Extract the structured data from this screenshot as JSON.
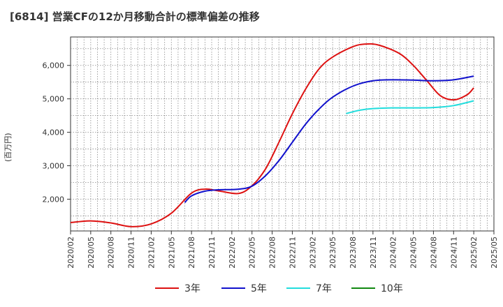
{
  "chart_data": {
    "type": "line",
    "title": "[6814]  営業CFの12か月移動合計の標準偏差の推移",
    "ylabel": "(百万円)",
    "xlabel": "",
    "x_ticks": [
      "2020/02",
      "2020/05",
      "2020/08",
      "2020/11",
      "2021/02",
      "2021/05",
      "2021/08",
      "2021/11",
      "2022/02",
      "2022/05",
      "2022/08",
      "2022/11",
      "2023/02",
      "2023/05",
      "2023/08",
      "2023/11",
      "2024/02",
      "2024/05",
      "2024/08",
      "2024/11",
      "2025/02",
      "2025/05"
    ],
    "y_ticks": [
      "2,000",
      "3,000",
      "4,000",
      "5,000",
      "6,000"
    ],
    "ylim": [
      1050,
      6850
    ],
    "grid": true,
    "legend_position": "bottom",
    "series": [
      {
        "name": "3年",
        "color": "#dd1111",
        "points": [
          [
            "2020/02",
            1300
          ],
          [
            "2020/05",
            1350
          ],
          [
            "2020/08",
            1290
          ],
          [
            "2020/11",
            1180
          ],
          [
            "2021/02",
            1260
          ],
          [
            "2021/05",
            1580
          ],
          [
            "2021/08",
            2180
          ],
          [
            "2021/10",
            2300
          ],
          [
            "2021/12",
            2250
          ],
          [
            "2022/03",
            2170
          ],
          [
            "2022/05",
            2400
          ],
          [
            "2022/07",
            2900
          ],
          [
            "2022/09",
            3700
          ],
          [
            "2022/11",
            4550
          ],
          [
            "2023/01",
            5300
          ],
          [
            "2023/03",
            5900
          ],
          [
            "2023/05",
            6250
          ],
          [
            "2023/08",
            6560
          ],
          [
            "2023/10",
            6640
          ],
          [
            "2023/12",
            6600
          ],
          [
            "2024/03",
            6350
          ],
          [
            "2024/05",
            6000
          ],
          [
            "2024/07",
            5550
          ],
          [
            "2024/09",
            5100
          ],
          [
            "2024/11",
            4970
          ],
          [
            "2025/01",
            5120
          ],
          [
            "2025/02",
            5330
          ]
        ]
      },
      {
        "name": "5年",
        "color": "#1111cc",
        "points": [
          [
            "2021/07",
            1900
          ],
          [
            "2021/08",
            2100
          ],
          [
            "2021/10",
            2240
          ],
          [
            "2021/12",
            2280
          ],
          [
            "2022/03",
            2300
          ],
          [
            "2022/05",
            2390
          ],
          [
            "2022/07",
            2700
          ],
          [
            "2022/09",
            3150
          ],
          [
            "2022/11",
            3700
          ],
          [
            "2023/01",
            4250
          ],
          [
            "2023/03",
            4700
          ],
          [
            "2023/05",
            5050
          ],
          [
            "2023/08",
            5380
          ],
          [
            "2023/11",
            5540
          ],
          [
            "2024/02",
            5570
          ],
          [
            "2024/05",
            5560
          ],
          [
            "2024/08",
            5540
          ],
          [
            "2024/11",
            5570
          ],
          [
            "2025/02",
            5680
          ]
        ]
      },
      {
        "name": "7年",
        "color": "#22dddd",
        "points": [
          [
            "2023/07",
            4560
          ],
          [
            "2023/09",
            4660
          ],
          [
            "2023/11",
            4710
          ],
          [
            "2024/02",
            4730
          ],
          [
            "2024/05",
            4730
          ],
          [
            "2024/08",
            4740
          ],
          [
            "2024/11",
            4800
          ],
          [
            "2025/02",
            4940
          ]
        ]
      },
      {
        "name": "10年",
        "color": "#118811",
        "points": []
      }
    ]
  }
}
